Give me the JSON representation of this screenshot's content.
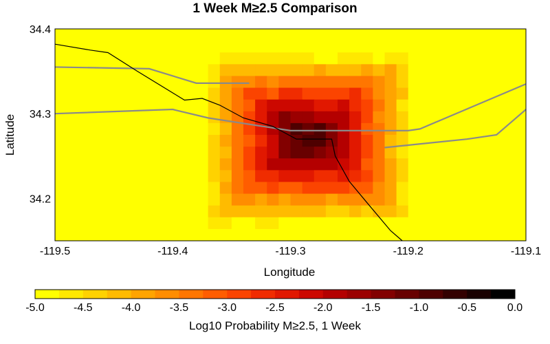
{
  "chart_data": {
    "type": "heatmap",
    "title": "1 Week M≥2.5 Comparison",
    "xlabel": "Longitude",
    "ylabel": "Latitude",
    "xlim": [
      -119.5,
      -119.1
    ],
    "ylim": [
      34.15,
      34.4
    ],
    "x_ticks": [
      "-119.5",
      "-119.4",
      "-119.3",
      "-119.2",
      "-119.1"
    ],
    "x_tick_values": [
      -119.5,
      -119.4,
      -119.3,
      -119.2,
      -119.1
    ],
    "y_ticks": [
      "34.4",
      "34.3",
      "34.2"
    ],
    "y_tick_values": [
      34.4,
      34.3,
      34.2
    ],
    "grid": false,
    "center": {
      "lon": -119.285,
      "lat": 34.27
    },
    "peak_value": -0.5,
    "colorbar": {
      "label": "Log10 Probability M≥2.5, 1 Week",
      "range": [
        -5.0,
        0.0
      ],
      "ticks": [
        "-5.0",
        "-4.5",
        "-4.0",
        "-3.5",
        "-3.0",
        "-2.5",
        "-2.0",
        "-1.5",
        "-1.0",
        "-0.5",
        "0.0"
      ],
      "tick_values": [
        -5.0,
        -4.5,
        -4.0,
        -3.5,
        -3.0,
        -2.5,
        -2.0,
        -1.5,
        -1.0,
        -0.5,
        0.0
      ],
      "colors": [
        "#ffff00",
        "#ffe800",
        "#ffd200",
        "#ffbb00",
        "#ffa400",
        "#ff8d00",
        "#ff7600",
        "#ff5d00",
        "#fb4400",
        "#f02c00",
        "#e11800",
        "#cc0800",
        "#b40000",
        "#9b0000",
        "#820000",
        "#680000",
        "#4e0000",
        "#330000",
        "#190000",
        "#000000"
      ]
    },
    "roads": [
      {
        "lon": [
          -119.5,
          -119.4,
          -119.37,
          -119.3,
          -119.2,
          -119.19,
          -119.1
        ],
        "lat": [
          34.3,
          34.305,
          34.295,
          34.28,
          34.28,
          34.282,
          34.335
        ]
      },
      {
        "lon": [
          -119.5,
          -119.42,
          -119.38,
          -119.335
        ],
        "lat": [
          34.355,
          34.353,
          34.336,
          34.336
        ]
      },
      {
        "lon": [
          -119.22,
          -119.15,
          -119.125,
          -119.1
        ],
        "lat": [
          34.26,
          34.27,
          34.275,
          34.305
        ]
      }
    ],
    "coastline": {
      "lon": [
        -119.5,
        -119.47,
        -119.455,
        -119.43,
        -119.39,
        -119.375,
        -119.36,
        -119.34,
        -119.315,
        -119.295,
        -119.265,
        -119.262,
        -119.25,
        -119.235,
        -119.215,
        -119.205
      ],
      "lat": [
        34.382,
        34.375,
        34.372,
        34.35,
        34.316,
        34.318,
        34.31,
        34.295,
        34.285,
        34.27,
        34.27,
        34.25,
        34.22,
        34.195,
        34.162,
        34.15
      ]
    }
  }
}
